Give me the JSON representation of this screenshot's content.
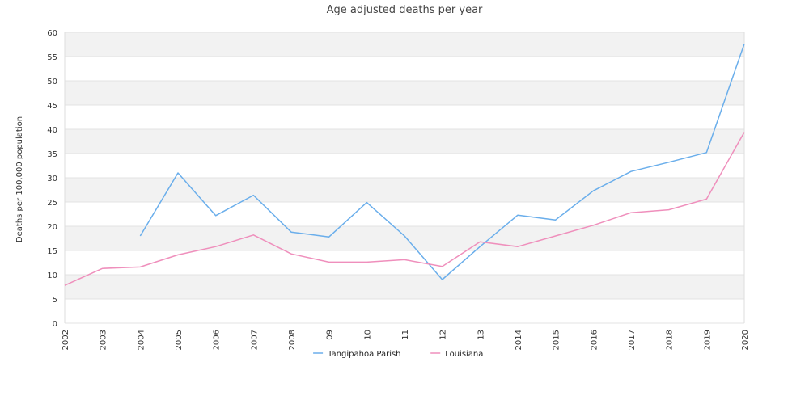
{
  "chart_data": {
    "type": "line",
    "title": "Age adjusted deaths per year",
    "ylabel": "Deaths per 100,000 population",
    "xlabel": "",
    "ylim": [
      0,
      60
    ],
    "yticks": [
      "0",
      "5",
      "10",
      "15",
      "20",
      "25",
      "30",
      "35",
      "40",
      "45",
      "50",
      "55",
      "60"
    ],
    "categories": [
      "2002",
      "2003",
      "2004",
      "2005",
      "2006",
      "2007",
      "2008",
      "09",
      "10",
      "11",
      "12",
      "13",
      "2014",
      "2015",
      "2016",
      "2017",
      "2018",
      "2019",
      "2020"
    ],
    "grid": "alternating horizontal bands",
    "legend_position": "bottom",
    "series": [
      {
        "name": "Tangipahoa Parish",
        "color": "#6aaeeb",
        "values": [
          null,
          null,
          18.0,
          31.0,
          22.2,
          26.4,
          18.8,
          17.8,
          24.9,
          18.0,
          9.0,
          15.8,
          22.3,
          21.3,
          27.3,
          31.3,
          33.2,
          35.2,
          57.6
        ]
      },
      {
        "name": "Louisiana",
        "color": "#ef8fbc",
        "values": [
          7.8,
          11.3,
          11.6,
          14.1,
          15.8,
          18.2,
          14.3,
          12.6,
          12.6,
          13.1,
          11.7,
          16.8,
          15.8,
          18.0,
          20.2,
          22.8,
          23.4,
          25.6,
          39.4
        ]
      }
    ]
  }
}
